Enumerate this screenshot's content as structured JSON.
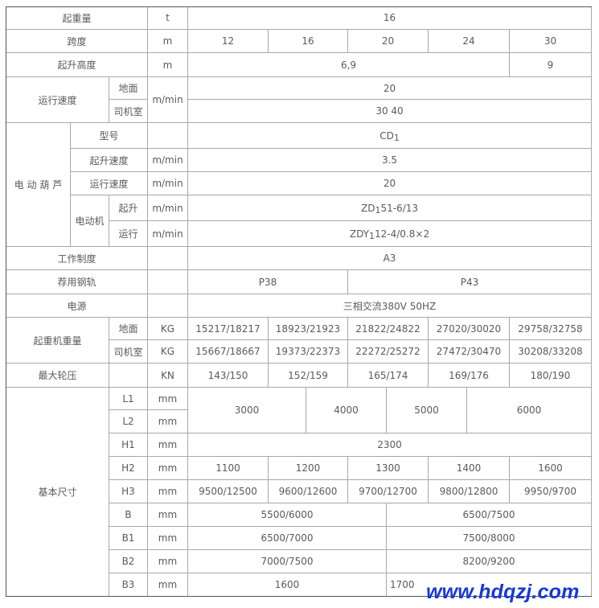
{
  "capacity": {
    "label": "起重量",
    "unit": "t",
    "value": "16"
  },
  "span": {
    "label": "跨度",
    "unit": "m",
    "values": [
      "12",
      "16",
      "20",
      "24",
      "30"
    ]
  },
  "lift_height": {
    "label": "起升高度",
    "unit": "m",
    "values": [
      "6,9",
      "9"
    ]
  },
  "travel_speed": {
    "label": "运行速度",
    "unit": "m/min",
    "sub": [
      "地面",
      "司机室"
    ],
    "values": [
      "20",
      "30 40"
    ]
  },
  "hoist": {
    "label": "电 动 葫 芦",
    "model": {
      "label": "型号",
      "unit": "",
      "prefix": "CD",
      "subscript": "1",
      "suffix": ""
    },
    "lift_speed": {
      "label": "起升速度",
      "unit": "m/min",
      "value": "3.5"
    },
    "travel_speed": {
      "label": "运行速度",
      "unit": "m/min",
      "value": "20"
    },
    "motor": {
      "label": "电动机",
      "lift": {
        "label": "起升",
        "unit": "m/min",
        "prefix": "ZD",
        "subscript": "1",
        "suffix": "51-6/13"
      },
      "travel": {
        "label": "运行",
        "unit": "m/min",
        "prefix": "ZDY",
        "subscript": "1",
        "suffix": "12-4/0.8×2"
      }
    }
  },
  "work_duty": {
    "label": "工作制度",
    "unit": "",
    "value": "A3"
  },
  "rail": {
    "label": "荐用钢轨",
    "unit": "",
    "values": [
      "P38",
      "P43"
    ]
  },
  "power": {
    "label": "电源",
    "unit": "",
    "value": "三相交流380V 50HZ"
  },
  "crane_weight": {
    "label": "起重机重量",
    "ground": {
      "label": "地面",
      "unit": "KG",
      "values": [
        "15217/18217",
        "18923/21923",
        "21822/24822",
        "27020/30020",
        "29758/32758"
      ]
    },
    "cab": {
      "label": "司机室",
      "unit": "KG",
      "values": [
        "15667/18667",
        "19373/22373",
        "22272/25272",
        "27472/30470",
        "30208/33208"
      ]
    }
  },
  "wheel_load": {
    "label": "最大轮压",
    "unit": "KN",
    "values": [
      "143/150",
      "152/159",
      "165/174",
      "169/176",
      "180/190"
    ]
  },
  "dimensions": {
    "label": "基本尺寸",
    "L1": {
      "label": "L1",
      "unit": "mm"
    },
    "L2": {
      "label": "L2",
      "unit": "mm"
    },
    "L_values": [
      "3000",
      "4000",
      "5000",
      "6000"
    ],
    "H1": {
      "label": "H1",
      "unit": "mm",
      "value": "2300"
    },
    "H2": {
      "label": "H2",
      "unit": "mm",
      "values": [
        "1100",
        "1200",
        "1300",
        "1400",
        "1600"
      ]
    },
    "H3": {
      "label": "H3",
      "unit": "mm",
      "values": [
        "9500/12500",
        "9600/12600",
        "9700/12700",
        "9800/12800",
        "9950/9700"
      ]
    },
    "B": {
      "label": "B",
      "unit": "mm",
      "values": [
        "5500/6000",
        "6500/7500"
      ]
    },
    "B1": {
      "label": "B1",
      "unit": "mm",
      "values": [
        "6500/7000",
        "7500/8000"
      ]
    },
    "B2": {
      "label": "B2",
      "unit": "mm",
      "values": [
        "7000/7500",
        "8200/9200"
      ]
    },
    "B3": {
      "label": "B3",
      "unit": "mm",
      "values": [
        "1600",
        "1700"
      ]
    }
  },
  "watermark": "www.hdqzj.com"
}
